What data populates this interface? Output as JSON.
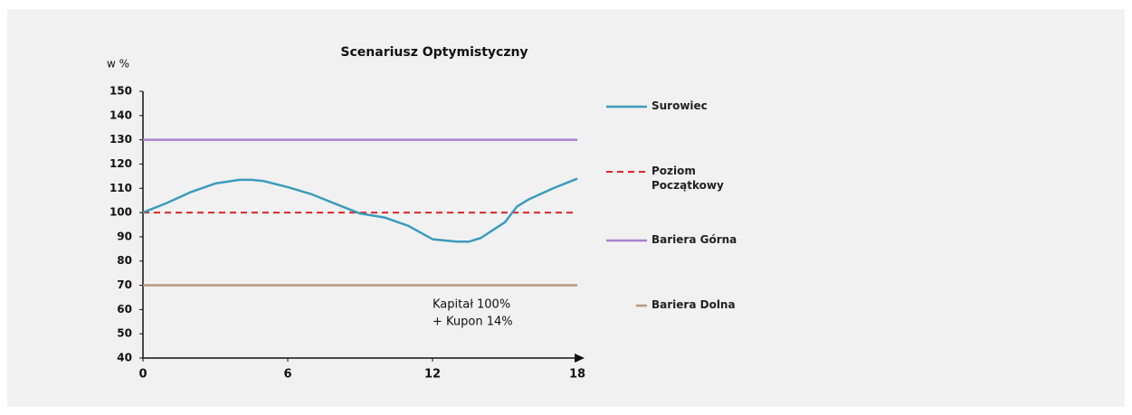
{
  "chart_data": {
    "type": "line",
    "title": "Scenariusz  Optymistyczny",
    "y_label": "w %",
    "annotations": [
      "Kapitał 100%",
      "+ Kupon 14%"
    ],
    "xlim": [
      0,
      18
    ],
    "xticks": [
      0,
      6,
      12,
      18
    ],
    "ylim": [
      40,
      150
    ],
    "yticks": [
      40,
      50,
      60,
      70,
      80,
      90,
      100,
      110,
      120,
      130,
      140,
      150
    ],
    "series": [
      {
        "name": "Surowiec",
        "color": "#3a9cbc",
        "dash": false,
        "x": [
          0,
          1,
          2,
          3,
          4,
          4.5,
          5,
          6,
          7,
          8,
          9,
          10,
          11,
          12,
          13,
          13.5,
          14,
          15,
          15.5,
          16,
          17,
          18
        ],
        "values": [
          100,
          104,
          108.5,
          112,
          113.5,
          113.5,
          113,
          110.5,
          107.5,
          103.5,
          99.6,
          98,
          94.5,
          89,
          88,
          88,
          89.5,
          96,
          102.5,
          105.5,
          110,
          114
        ]
      },
      {
        "name": "Poziom Początkowy",
        "color": "#e02424",
        "dash": true,
        "x": [
          0,
          18
        ],
        "values": [
          100,
          100
        ]
      },
      {
        "name": "Bariera Górna",
        "color": "#a881d2",
        "dash": false,
        "x": [
          0,
          18
        ],
        "values": [
          130,
          130
        ]
      },
      {
        "name": "Bariera Dolna",
        "color": "#b8957f",
        "dash": false,
        "x": [
          0,
          18
        ],
        "values": [
          70,
          70
        ]
      }
    ]
  }
}
